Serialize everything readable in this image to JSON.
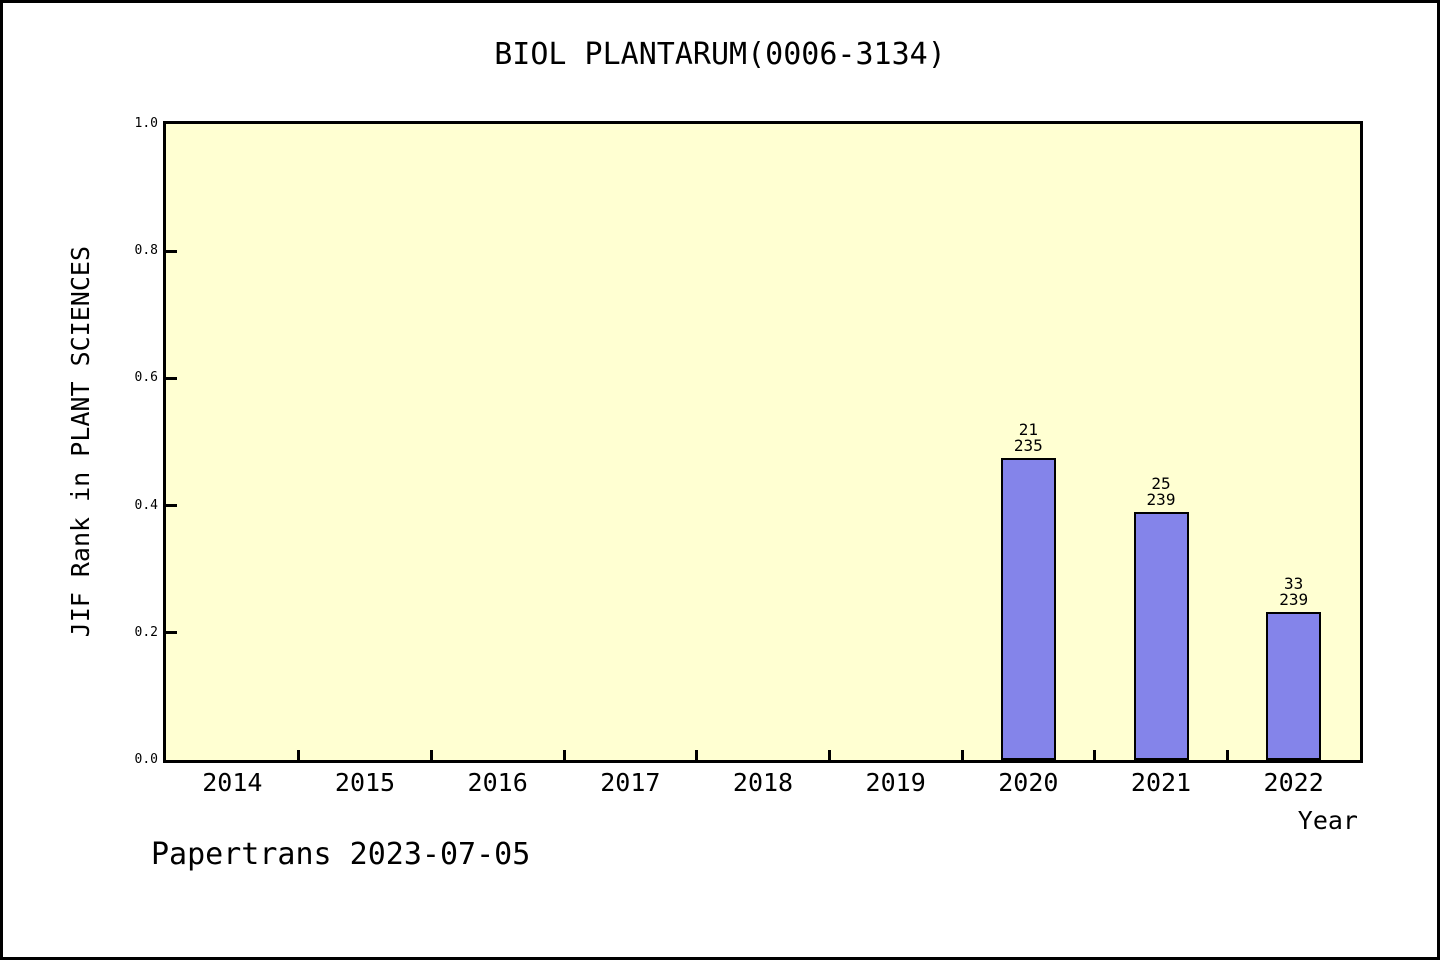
{
  "page": {
    "footer": "Papertrans 2023-07-05"
  },
  "chart_data": {
    "type": "bar",
    "title": "BIOL PLANTARUM(0006-3134)",
    "xlabel": "Year",
    "ylabel": "JIF Rank in PLANT SCIENCES",
    "ylim": [
      0.0,
      1.0
    ],
    "ytick_labels": [
      "0.0",
      "0.2",
      "0.4",
      "0.6",
      "0.8",
      "1.0"
    ],
    "grid": false,
    "legend": null,
    "categories": [
      "2014",
      "2015",
      "2016",
      "2017",
      "2018",
      "2019",
      "2020",
      "2021",
      "2022"
    ],
    "values": [
      null,
      null,
      null,
      null,
      null,
      null,
      0.475,
      0.39,
      0.232
    ],
    "bar_annotations": [
      null,
      null,
      null,
      null,
      null,
      null,
      {
        "rank": "21",
        "of": "235"
      },
      {
        "rank": "25",
        "of": "239"
      },
      {
        "rank": "33",
        "of": "239"
      }
    ],
    "colors": {
      "bar_fill": "#8484ea",
      "bar_border": "#000000",
      "plot_background": "#ffffd2",
      "axis": "#000000",
      "text": "#000000"
    }
  }
}
